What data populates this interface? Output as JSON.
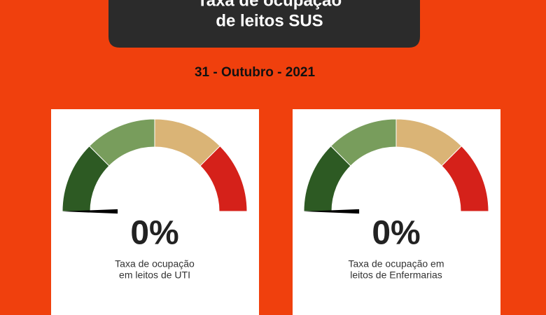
{
  "header": {
    "title_lines": [
      "Taxa de ocupação",
      "de leitos SUS"
    ]
  },
  "date": "31 - Outubro - 2021",
  "chart_data": [
    {
      "type": "gauge",
      "values": [
        0
      ],
      "value_labels": [
        "0%"
      ],
      "ylim": [
        0,
        100
      ],
      "band_colors": [
        "#2d5a23",
        "#789d5c",
        "#dab476",
        "#d5211a"
      ],
      "caption_lines": [
        "Taxa de ocupação",
        "em leitos de UTI"
      ]
    },
    {
      "type": "gauge",
      "values": [
        0
      ],
      "value_labels": [
        "0%"
      ],
      "ylim": [
        0,
        100
      ],
      "band_colors": [
        "#2d5a23",
        "#789d5c",
        "#dab476",
        "#d5211a"
      ],
      "caption_lines": [
        "Taxa de ocupação em",
        "leitos de Enfermarias"
      ]
    }
  ]
}
